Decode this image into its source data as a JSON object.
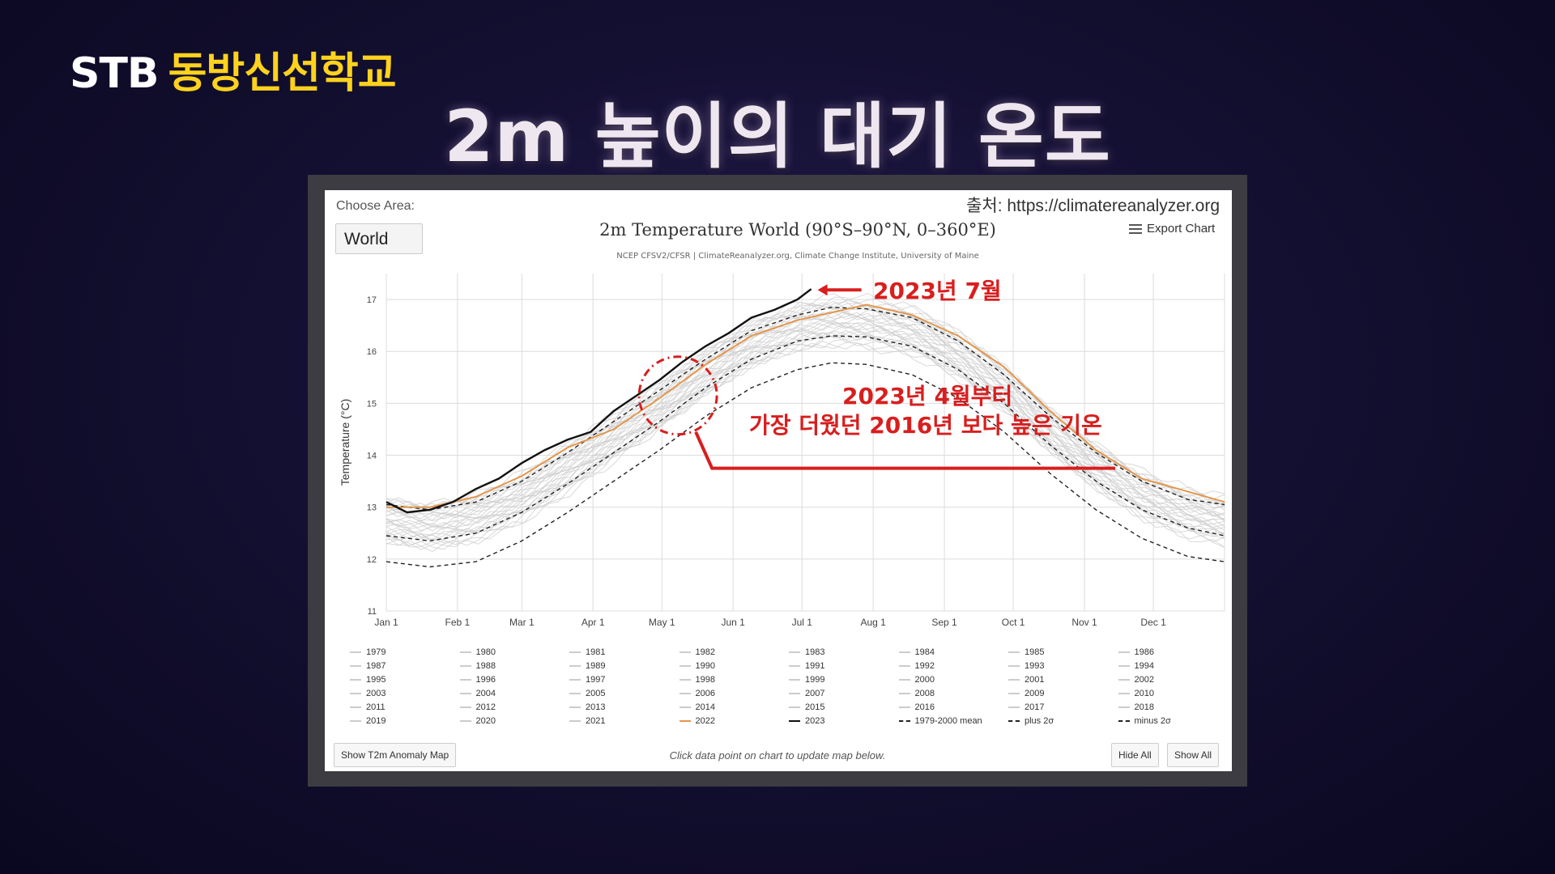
{
  "brand": {
    "stb": "STB",
    "school": "동방신선학교"
  },
  "headline": "2m 높이의 대기 온도",
  "panel": {
    "choose_label": "Choose Area:",
    "area_value": "World",
    "source": "출처: https://climatereanalyzer.org",
    "title": "2m Temperature World (90°S–90°N, 0–360°E)",
    "credits": "NCEP CFSV2/CFSR | ClimateReanalyzer.org, Climate Change Institute, University of Maine",
    "export_label": "Export Chart",
    "show_map_button": "Show T2m Anomaly Map",
    "hint": "Click data point on chart to update map below.",
    "hide_all": "Hide All",
    "show_all": "Show All"
  },
  "annotations": {
    "july_label": "2023년 7월",
    "april_line1": "2023년 4월부터",
    "april_line2": "가장 더웠던 2016년 보다 높은 기온"
  },
  "colors": {
    "background": "#141032",
    "accent_red": "#d81e1e",
    "brand_yellow": "#ffd21e",
    "series_2022": "#e3964c",
    "series_2023": "#111111",
    "series_past": "#cccccc"
  },
  "legend": [
    "1979",
    "1980",
    "1981",
    "1982",
    "1983",
    "1984",
    "1985",
    "1986",
    "1987",
    "1988",
    "1989",
    "1990",
    "1991",
    "1992",
    "1993",
    "1994",
    "1995",
    "1996",
    "1997",
    "1998",
    "1999",
    "2000",
    "2001",
    "2002",
    "2003",
    "2004",
    "2005",
    "2006",
    "2007",
    "2008",
    "2009",
    "2010",
    "2011",
    "2012",
    "2013",
    "2014",
    "2015",
    "2016",
    "2017",
    "2018",
    "2019",
    "2020",
    "2021",
    "2022",
    "2023",
    "1979-2000 mean",
    "plus 2σ",
    "minus 2σ"
  ],
  "chart_data": {
    "type": "line",
    "ylabel": "Temperature (°C)",
    "ylim": [
      11,
      17.5
    ],
    "yticks": [
      11,
      12,
      13,
      14,
      15,
      16,
      17
    ],
    "xticks": [
      "Jan 1",
      "Feb 1",
      "Mar 1",
      "Apr 1",
      "May 1",
      "Jun 1",
      "Jul 1",
      "Aug 1",
      "Sep 1",
      "Oct 1",
      "Nov 1",
      "Dec 1"
    ],
    "xtick_days": [
      1,
      32,
      60,
      91,
      121,
      152,
      182,
      213,
      244,
      274,
      305,
      335
    ],
    "xlim": [
      1,
      366
    ],
    "grid": true,
    "series": [
      {
        "name": "1979-2000 mean",
        "style": "dashed",
        "x": [
          1,
          20,
          40,
          60,
          80,
          100,
          120,
          140,
          160,
          180,
          195,
          210,
          230,
          250,
          270,
          290,
          310,
          330,
          350,
          366
        ],
        "y": [
          12.45,
          12.35,
          12.5,
          12.9,
          13.45,
          14.05,
          14.65,
          15.3,
          15.85,
          16.2,
          16.3,
          16.28,
          16.1,
          15.65,
          15.0,
          14.2,
          13.5,
          12.95,
          12.6,
          12.45
        ]
      },
      {
        "name": "plus 2σ",
        "style": "dashed",
        "x": [
          1,
          20,
          40,
          60,
          80,
          100,
          120,
          140,
          160,
          180,
          195,
          210,
          230,
          250,
          270,
          290,
          310,
          330,
          350,
          366
        ],
        "y": [
          13.05,
          12.95,
          13.1,
          13.5,
          14.05,
          14.65,
          15.25,
          15.85,
          16.4,
          16.7,
          16.85,
          16.82,
          16.65,
          16.2,
          15.55,
          14.75,
          14.05,
          13.5,
          13.15,
          13.05
        ]
      },
      {
        "name": "minus 2σ",
        "style": "dashed",
        "x": [
          1,
          20,
          40,
          60,
          80,
          100,
          120,
          140,
          160,
          180,
          195,
          210,
          230,
          250,
          270,
          290,
          310,
          330,
          350,
          366
        ],
        "y": [
          11.95,
          11.85,
          11.95,
          12.35,
          12.9,
          13.5,
          14.1,
          14.75,
          15.3,
          15.65,
          15.78,
          15.75,
          15.55,
          15.1,
          14.45,
          13.65,
          12.95,
          12.4,
          12.05,
          11.95
        ]
      },
      {
        "name": "2022",
        "color": "#e3964c",
        "x": [
          1,
          20,
          40,
          60,
          80,
          100,
          120,
          140,
          160,
          180,
          195,
          210,
          230,
          250,
          270,
          290,
          310,
          330,
          350,
          366
        ],
        "y": [
          13.0,
          13.0,
          13.2,
          13.6,
          14.15,
          14.5,
          15.1,
          15.75,
          16.3,
          16.6,
          16.75,
          16.9,
          16.7,
          16.3,
          15.7,
          14.85,
          14.1,
          13.55,
          13.3,
          13.1
        ]
      },
      {
        "name": "2023",
        "color": "#111111",
        "x": [
          1,
          10,
          20,
          30,
          40,
          50,
          60,
          70,
          80,
          90,
          100,
          110,
          120,
          130,
          140,
          150,
          160,
          170,
          180,
          186
        ],
        "y": [
          13.1,
          12.9,
          12.95,
          13.1,
          13.35,
          13.55,
          13.85,
          14.1,
          14.3,
          14.45,
          14.85,
          15.15,
          15.45,
          15.8,
          16.1,
          16.35,
          16.65,
          16.8,
          17.0,
          17.2
        ]
      }
    ]
  }
}
